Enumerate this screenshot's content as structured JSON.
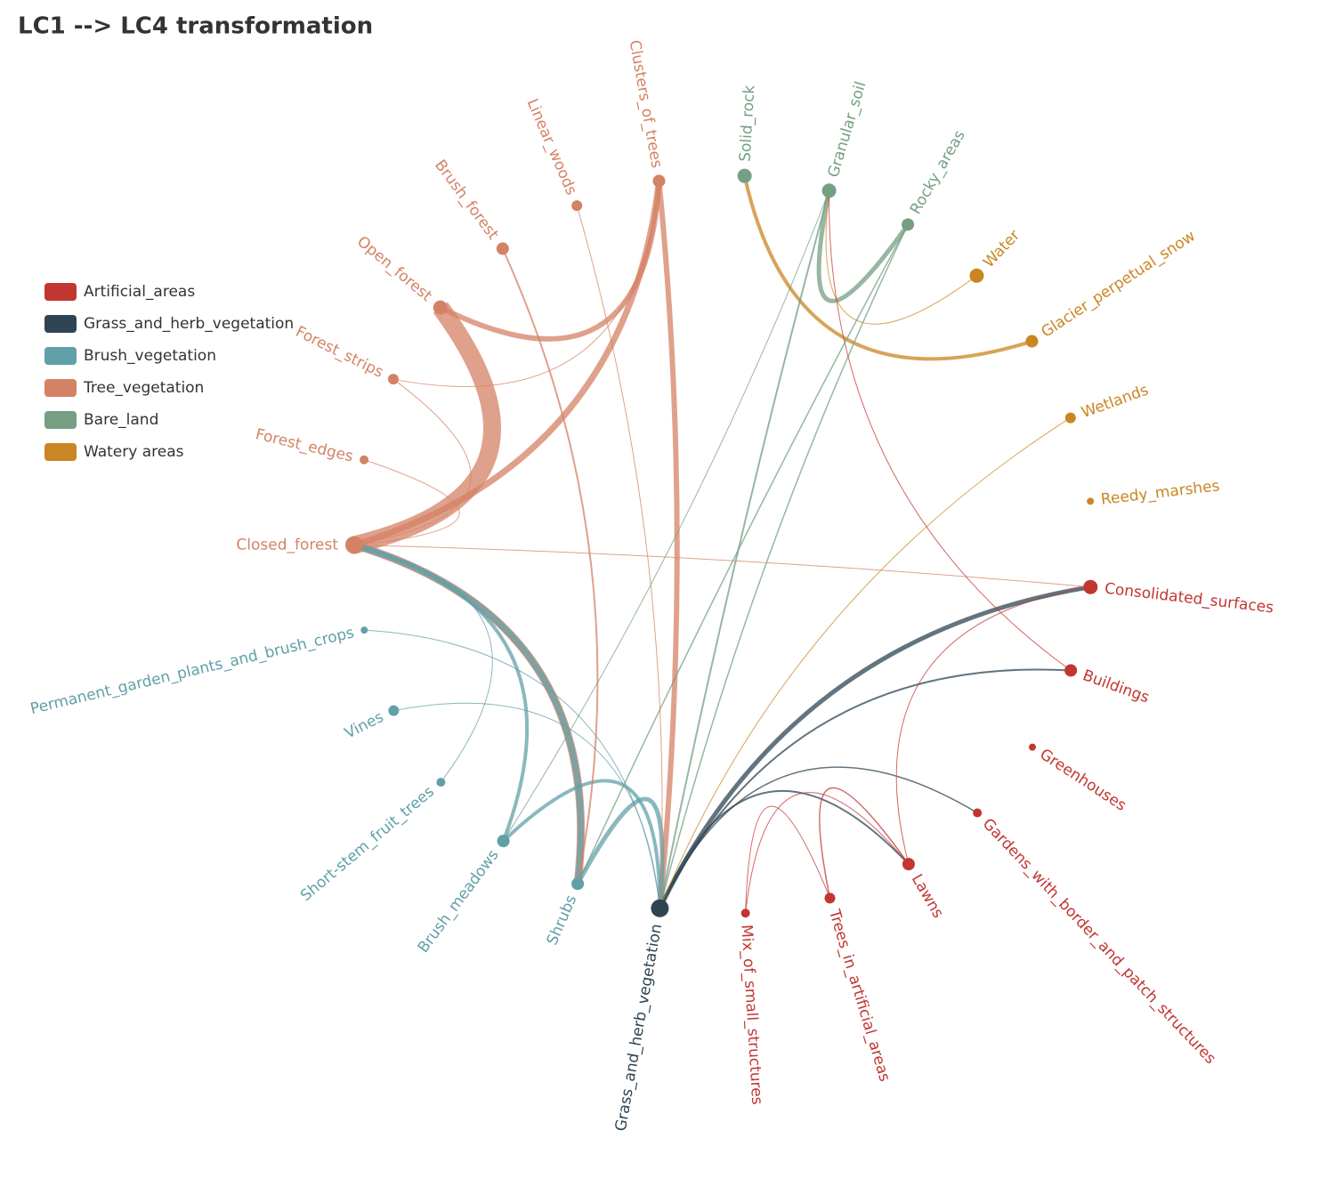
{
  "chart_data": {
    "type": "graph",
    "title": "LC1 --> LC4 transformation",
    "categories": [
      {
        "name": "Artificial_areas",
        "color": "#c23531"
      },
      {
        "name": "Grass_and_herb_vegetation",
        "color": "#2f4554"
      },
      {
        "name": "Brush_vegetation",
        "color": "#61a0a8"
      },
      {
        "name": "Tree_vegetation",
        "color": "#d48265"
      },
      {
        "name": "Bare_land",
        "color": "#749f83"
      },
      {
        "name": "Watery areas",
        "color": "#ca8622"
      }
    ],
    "nodes": [
      {
        "name": "Consolidated_surfaces",
        "category": 0,
        "value": 8
      },
      {
        "name": "Buildings",
        "category": 0,
        "value": 7
      },
      {
        "name": "Greenhouses",
        "category": 0,
        "value": 4
      },
      {
        "name": "Gardens_with_border_and_patch_structures",
        "category": 0,
        "value": 5
      },
      {
        "name": "Lawns",
        "category": 0,
        "value": 7
      },
      {
        "name": "Trees_in_artificial_areas",
        "category": 0,
        "value": 6
      },
      {
        "name": "Mix_of_small_structures",
        "category": 0,
        "value": 5
      },
      {
        "name": "Grass_and_herb_vegetation",
        "category": 1,
        "value": 10
      },
      {
        "name": "Shrubs",
        "category": 2,
        "value": 7
      },
      {
        "name": "Brush_meadows",
        "category": 2,
        "value": 7
      },
      {
        "name": "Short-stem_fruit_trees",
        "category": 2,
        "value": 5
      },
      {
        "name": "Vines",
        "category": 2,
        "value": 6
      },
      {
        "name": "Permanent_garden_plants_and_brush_crops",
        "category": 2,
        "value": 4
      },
      {
        "name": "Closed_forest",
        "category": 3,
        "value": 10
      },
      {
        "name": "Forest_edges",
        "category": 3,
        "value": 5
      },
      {
        "name": "Forest_strips",
        "category": 3,
        "value": 6
      },
      {
        "name": "Open_forest",
        "category": 3,
        "value": 8
      },
      {
        "name": "Brush_forest",
        "category": 3,
        "value": 7
      },
      {
        "name": "Linear_woods",
        "category": 3,
        "value": 6
      },
      {
        "name": "Clusters_of_trees",
        "category": 3,
        "value": 7
      },
      {
        "name": "Solid_rock",
        "category": 4,
        "value": 8
      },
      {
        "name": "Granular_soil",
        "category": 4,
        "value": 8
      },
      {
        "name": "Rocky_areas",
        "category": 4,
        "value": 7
      },
      {
        "name": "Water",
        "category": 5,
        "value": 8
      },
      {
        "name": "Glacier_perpetual_snow",
        "category": 5,
        "value": 7
      },
      {
        "name": "Wetlands",
        "category": 5,
        "value": 6
      },
      {
        "name": "Reedy_marshes",
        "category": 5,
        "value": 4
      }
    ],
    "links": [
      {
        "source": 16,
        "target": 13,
        "value": 20
      },
      {
        "source": 16,
        "target": 19,
        "value": 6
      },
      {
        "source": 19,
        "target": 13,
        "value": 7
      },
      {
        "source": 19,
        "target": 7,
        "value": 6
      },
      {
        "source": 13,
        "target": 8,
        "value": 9
      },
      {
        "source": 8,
        "target": 13,
        "value": 7
      },
      {
        "source": 9,
        "target": 13,
        "value": 4
      },
      {
        "source": 8,
        "target": 7,
        "value": 5
      },
      {
        "source": 9,
        "target": 7,
        "value": 4
      },
      {
        "source": 7,
        "target": 0,
        "value": 5
      },
      {
        "source": 7,
        "target": 1,
        "value": 2
      },
      {
        "source": 7,
        "target": 4,
        "value": 2
      },
      {
        "source": 7,
        "target": 3,
        "value": 1.5
      },
      {
        "source": 24,
        "target": 20,
        "value": 4
      },
      {
        "source": 22,
        "target": 21,
        "value": 5
      },
      {
        "source": 21,
        "target": 7,
        "value": 2
      },
      {
        "source": 22,
        "target": 7,
        "value": 1.5
      },
      {
        "source": 23,
        "target": 21,
        "value": 1
      },
      {
        "source": 15,
        "target": 13,
        "value": 1
      },
      {
        "source": 15,
        "target": 19,
        "value": 1
      },
      {
        "source": 14,
        "target": 13,
        "value": 1
      },
      {
        "source": 17,
        "target": 8,
        "value": 2
      },
      {
        "source": 18,
        "target": 7,
        "value": 1
      },
      {
        "source": 4,
        "target": 0,
        "value": 1
      },
      {
        "source": 5,
        "target": 4,
        "value": 1.5
      },
      {
        "source": 6,
        "target": 5,
        "value": 1
      },
      {
        "source": 6,
        "target": 4,
        "value": 1
      },
      {
        "source": 11,
        "target": 7,
        "value": 1
      },
      {
        "source": 12,
        "target": 7,
        "value": 1
      },
      {
        "source": 10,
        "target": 13,
        "value": 1
      },
      {
        "source": 25,
        "target": 7,
        "value": 1
      },
      {
        "source": 13,
        "target": 0,
        "value": 1
      },
      {
        "source": 1,
        "target": 21,
        "value": 1
      },
      {
        "source": 22,
        "target": 8,
        "value": 1.5
      },
      {
        "source": 21,
        "target": 9,
        "value": 1
      }
    ]
  }
}
